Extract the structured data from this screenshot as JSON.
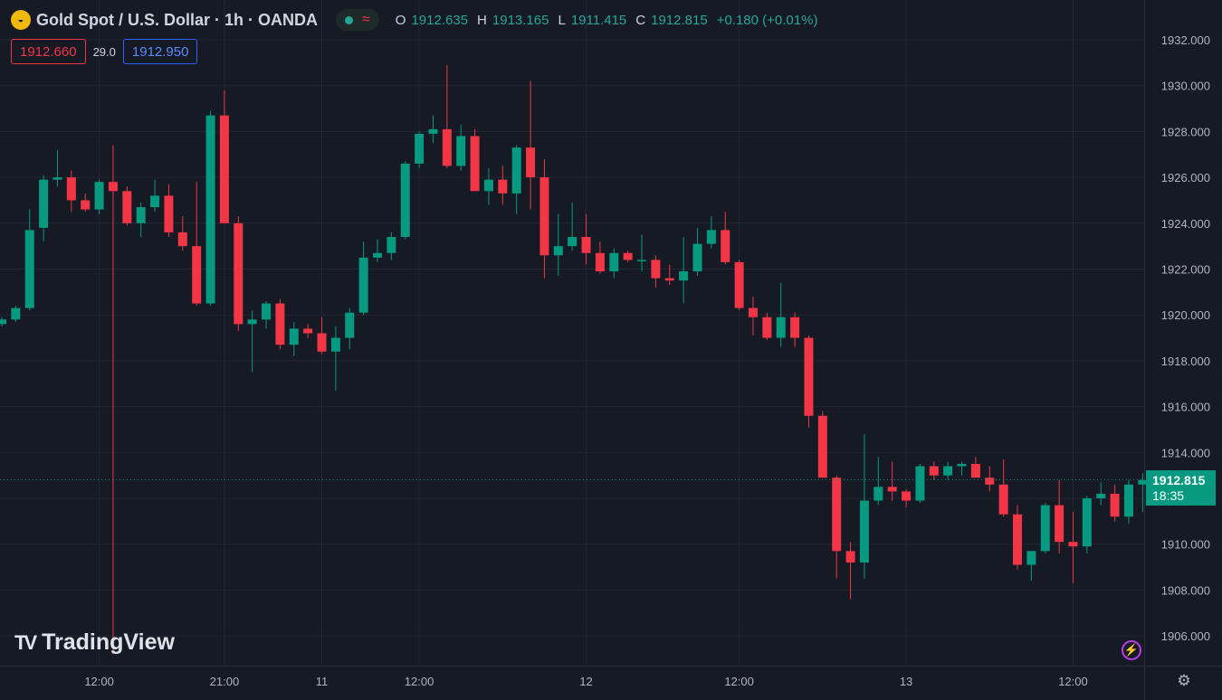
{
  "header": {
    "logo_glyph": "◒",
    "title": "Gold Spot / U.S. Dollar · 1h · OANDA",
    "status_wave": "≈",
    "ohlc": [
      {
        "key": "O",
        "value": "1912.635"
      },
      {
        "key": "H",
        "value": "1913.165"
      },
      {
        "key": "L",
        "value": "1911.415"
      },
      {
        "key": "C",
        "value": "1912.815"
      }
    ],
    "change": "+0.180 (+0.01%)"
  },
  "trade": {
    "sell_price": "1912.660",
    "spread": "29.0",
    "buy_price": "1912.950"
  },
  "watermark": {
    "icon": "TV",
    "text": "TradingView"
  },
  "last_price": {
    "price": "1912.815",
    "countdown": "18:35"
  },
  "icons": {
    "bolt": "⚡",
    "settings": "⚙"
  },
  "colors": {
    "background": "#161a25",
    "up": "#089981",
    "down": "#f23645",
    "grid": "#232733",
    "axis_text": "#b2b5be"
  },
  "chart_data": {
    "type": "candlestick",
    "symbol": "Gold Spot / U.S. Dollar",
    "interval": "1h",
    "y_ticks": [
      "1932.000",
      "1930.000",
      "1928.000",
      "1926.000",
      "1924.000",
      "1922.000",
      "1920.000",
      "1918.000",
      "1916.000",
      "1914.000",
      "1912.000",
      "1910.000",
      "1908.000",
      "1906.000"
    ],
    "ylim": [
      1905.2,
      1933.8
    ],
    "x_ticks": [
      {
        "label": "12:00",
        "index": 7
      },
      {
        "label": "21:00",
        "index": 16
      },
      {
        "label": "11",
        "index": 23
      },
      {
        "label": "12:00",
        "index": 30
      },
      {
        "label": "12",
        "index": 42
      },
      {
        "label": "12:00",
        "index": 53
      },
      {
        "label": "13",
        "index": 65
      },
      {
        "label": "12:00",
        "index": 77
      }
    ],
    "last_price": 1912.815,
    "candles": [
      {
        "o": 1919.6,
        "h": 1919.9,
        "l": 1919.5,
        "c": 1919.8
      },
      {
        "o": 1919.8,
        "h": 1920.4,
        "l": 1919.7,
        "c": 1920.3
      },
      {
        "o": 1920.3,
        "h": 1924.6,
        "l": 1920.2,
        "c": 1923.7
      },
      {
        "o": 1923.8,
        "h": 1926.1,
        "l": 1923.2,
        "c": 1925.9
      },
      {
        "o": 1925.9,
        "h": 1927.2,
        "l": 1925.6,
        "c": 1926.0
      },
      {
        "o": 1926.0,
        "h": 1926.3,
        "l": 1924.5,
        "c": 1925.0
      },
      {
        "o": 1925.0,
        "h": 1925.3,
        "l": 1924.5,
        "c": 1924.6
      },
      {
        "o": 1924.6,
        "h": 1925.9,
        "l": 1924.4,
        "c": 1925.8
      },
      {
        "o": 1925.8,
        "h": 1927.4,
        "l": 1425.0,
        "c": 1925.4
      },
      {
        "o": 1925.4,
        "h": 1925.6,
        "l": 1923.9,
        "c": 1924.0
      },
      {
        "o": 1924.0,
        "h": 1924.9,
        "l": 1923.4,
        "c": 1924.7
      },
      {
        "o": 1924.7,
        "h": 1925.9,
        "l": 1924.5,
        "c": 1925.2
      },
      {
        "o": 1925.2,
        "h": 1925.7,
        "l": 1923.4,
        "c": 1923.6
      },
      {
        "o": 1923.6,
        "h": 1924.3,
        "l": 1922.8,
        "c": 1923.0
      },
      {
        "o": 1923.0,
        "h": 1925.8,
        "l": 1920.4,
        "c": 1920.5
      },
      {
        "o": 1920.5,
        "h": 1928.9,
        "l": 1920.4,
        "c": 1928.7
      },
      {
        "o": 1928.7,
        "h": 1929.8,
        "l": 1924.0,
        "c": 1924.0
      },
      {
        "o": 1924.0,
        "h": 1924.3,
        "l": 1919.3,
        "c": 1919.6
      },
      {
        "o": 1919.6,
        "h": 1920.2,
        "l": 1917.5,
        "c": 1919.8
      },
      {
        "o": 1919.8,
        "h": 1920.6,
        "l": 1919.4,
        "c": 1920.5
      },
      {
        "o": 1920.5,
        "h": 1920.7,
        "l": 1918.5,
        "c": 1918.7
      },
      {
        "o": 1918.7,
        "h": 1919.7,
        "l": 1918.2,
        "c": 1919.4
      },
      {
        "o": 1919.4,
        "h": 1919.6,
        "l": 1919.0,
        "c": 1919.2
      },
      {
        "o": 1919.2,
        "h": 1919.9,
        "l": 1918.3,
        "c": 1918.4
      },
      {
        "o": 1918.4,
        "h": 1919.5,
        "l": 1916.7,
        "c": 1919.0
      },
      {
        "o": 1919.0,
        "h": 1920.3,
        "l": 1918.5,
        "c": 1920.1
      },
      {
        "o": 1920.1,
        "h": 1923.2,
        "l": 1920.0,
        "c": 1922.5
      },
      {
        "o": 1922.5,
        "h": 1923.3,
        "l": 1922.3,
        "c": 1922.7
      },
      {
        "o": 1922.7,
        "h": 1923.6,
        "l": 1922.4,
        "c": 1923.4
      },
      {
        "o": 1923.4,
        "h": 1926.7,
        "l": 1923.3,
        "c": 1926.6
      },
      {
        "o": 1926.6,
        "h": 1928.0,
        "l": 1926.4,
        "c": 1927.9
      },
      {
        "o": 1927.9,
        "h": 1928.7,
        "l": 1927.5,
        "c": 1928.1
      },
      {
        "o": 1928.1,
        "h": 1930.9,
        "l": 1926.4,
        "c": 1926.5
      },
      {
        "o": 1926.5,
        "h": 1928.3,
        "l": 1926.3,
        "c": 1927.8
      },
      {
        "o": 1927.8,
        "h": 1928.1,
        "l": 1925.4,
        "c": 1925.4
      },
      {
        "o": 1925.4,
        "h": 1926.4,
        "l": 1924.8,
        "c": 1925.9
      },
      {
        "o": 1925.9,
        "h": 1926.5,
        "l": 1924.8,
        "c": 1925.3
      },
      {
        "o": 1925.3,
        "h": 1927.4,
        "l": 1924.4,
        "c": 1927.3
      },
      {
        "o": 1927.3,
        "h": 1930.2,
        "l": 1924.6,
        "c": 1926.0
      },
      {
        "o": 1926.0,
        "h": 1926.8,
        "l": 1921.6,
        "c": 1922.6
      },
      {
        "o": 1922.6,
        "h": 1924.4,
        "l": 1921.7,
        "c": 1923.0
      },
      {
        "o": 1923.0,
        "h": 1924.9,
        "l": 1922.8,
        "c": 1923.4
      },
      {
        "o": 1923.4,
        "h": 1924.4,
        "l": 1922.2,
        "c": 1922.7
      },
      {
        "o": 1922.7,
        "h": 1923.2,
        "l": 1921.8,
        "c": 1921.9
      },
      {
        "o": 1921.9,
        "h": 1922.9,
        "l": 1921.6,
        "c": 1922.7
      },
      {
        "o": 1922.7,
        "h": 1922.8,
        "l": 1922.3,
        "c": 1922.4
      },
      {
        "o": 1922.4,
        "h": 1923.5,
        "l": 1921.9,
        "c": 1922.4
      },
      {
        "o": 1922.4,
        "h": 1922.6,
        "l": 1921.2,
        "c": 1921.6
      },
      {
        "o": 1921.6,
        "h": 1922.2,
        "l": 1921.3,
        "c": 1921.5
      },
      {
        "o": 1921.5,
        "h": 1923.4,
        "l": 1920.5,
        "c": 1921.9
      },
      {
        "o": 1921.9,
        "h": 1923.8,
        "l": 1921.7,
        "c": 1923.1
      },
      {
        "o": 1923.1,
        "h": 1924.3,
        "l": 1922.9,
        "c": 1923.7
      },
      {
        "o": 1923.7,
        "h": 1924.5,
        "l": 1922.2,
        "c": 1922.3
      },
      {
        "o": 1922.3,
        "h": 1922.4,
        "l": 1920.2,
        "c": 1920.3
      },
      {
        "o": 1920.3,
        "h": 1920.8,
        "l": 1919.1,
        "c": 1919.9
      },
      {
        "o": 1919.9,
        "h": 1920.1,
        "l": 1918.9,
        "c": 1919.0
      },
      {
        "o": 1919.0,
        "h": 1921.4,
        "l": 1918.6,
        "c": 1919.9
      },
      {
        "o": 1919.9,
        "h": 1920.1,
        "l": 1918.6,
        "c": 1919.0
      },
      {
        "o": 1919.0,
        "h": 1919.1,
        "l": 1915.1,
        "c": 1915.6
      },
      {
        "o": 1915.6,
        "h": 1915.8,
        "l": 1912.9,
        "c": 1912.9
      },
      {
        "o": 1912.9,
        "h": 1913.0,
        "l": 1908.5,
        "c": 1909.7
      },
      {
        "o": 1909.7,
        "h": 1910.1,
        "l": 1907.6,
        "c": 1909.2
      },
      {
        "o": 1909.2,
        "h": 1914.8,
        "l": 1908.5,
        "c": 1911.9
      },
      {
        "o": 1911.9,
        "h": 1913.8,
        "l": 1911.7,
        "c": 1912.5
      },
      {
        "o": 1912.5,
        "h": 1913.6,
        "l": 1911.9,
        "c": 1912.3
      },
      {
        "o": 1912.3,
        "h": 1912.4,
        "l": 1911.6,
        "c": 1911.9
      },
      {
        "o": 1911.9,
        "h": 1913.5,
        "l": 1911.8,
        "c": 1913.4
      },
      {
        "o": 1913.4,
        "h": 1913.6,
        "l": 1912.8,
        "c": 1913.0
      },
      {
        "o": 1913.0,
        "h": 1913.6,
        "l": 1912.8,
        "c": 1913.4
      },
      {
        "o": 1913.4,
        "h": 1913.6,
        "l": 1913.0,
        "c": 1913.5
      },
      {
        "o": 1913.5,
        "h": 1913.8,
        "l": 1912.9,
        "c": 1912.9
      },
      {
        "o": 1912.9,
        "h": 1913.4,
        "l": 1912.3,
        "c": 1912.6
      },
      {
        "o": 1912.6,
        "h": 1913.7,
        "l": 1911.2,
        "c": 1911.3
      },
      {
        "o": 1911.3,
        "h": 1911.7,
        "l": 1908.9,
        "c": 1909.1
      },
      {
        "o": 1909.1,
        "h": 1909.7,
        "l": 1908.4,
        "c": 1909.7
      },
      {
        "o": 1909.7,
        "h": 1911.8,
        "l": 1909.6,
        "c": 1911.7
      },
      {
        "o": 1911.7,
        "h": 1912.8,
        "l": 1909.6,
        "c": 1910.1
      },
      {
        "o": 1910.1,
        "h": 1911.4,
        "l": 1908.3,
        "c": 1909.9
      },
      {
        "o": 1909.9,
        "h": 1912.1,
        "l": 1909.6,
        "c": 1912.0
      },
      {
        "o": 1912.0,
        "h": 1912.7,
        "l": 1911.7,
        "c": 1912.2
      },
      {
        "o": 1912.2,
        "h": 1912.6,
        "l": 1911.0,
        "c": 1911.2
      },
      {
        "o": 1911.2,
        "h": 1912.8,
        "l": 1910.9,
        "c": 1912.6
      },
      {
        "o": 1912.6,
        "h": 1913.1,
        "l": 1911.4,
        "c": 1912.8
      }
    ]
  }
}
